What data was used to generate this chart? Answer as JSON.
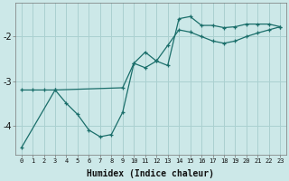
{
  "xlabel": "Humidex (Indice chaleur)",
  "xlim": [
    -0.5,
    23.5
  ],
  "ylim": [
    -4.65,
    -1.25
  ],
  "bg_color": "#cce8e8",
  "line_color": "#1a6e6a",
  "grid_color": "#aad0d0",
  "line1_x": [
    0,
    1,
    2,
    3,
    9,
    10,
    11,
    12,
    13,
    14,
    15,
    16,
    17,
    18,
    19,
    20,
    21,
    22,
    23
  ],
  "line1_y": [
    -3.2,
    -3.2,
    -3.2,
    -3.2,
    -3.15,
    -2.6,
    -2.35,
    -2.55,
    -2.65,
    -1.6,
    -1.55,
    -1.75,
    -1.75,
    -1.8,
    -1.78,
    -1.72,
    -1.72,
    -1.72,
    -1.78
  ],
  "line2_x": [
    0,
    3,
    4,
    5,
    6,
    7,
    8,
    9,
    10,
    11,
    12,
    13,
    14,
    15,
    16,
    17,
    18,
    19,
    20,
    21,
    22,
    23
  ],
  "line2_y": [
    -4.5,
    -3.2,
    -3.5,
    -3.75,
    -4.1,
    -4.25,
    -4.2,
    -3.7,
    -2.6,
    -2.7,
    -2.55,
    -2.2,
    -1.85,
    -1.9,
    -2.0,
    -2.1,
    -2.15,
    -2.1,
    -2.0,
    -1.92,
    -1.85,
    -1.78
  ],
  "ytick_values": [
    -4.0,
    -3.0,
    -2.0
  ],
  "ytick_labels": [
    "-4",
    "-3",
    "-2"
  ]
}
